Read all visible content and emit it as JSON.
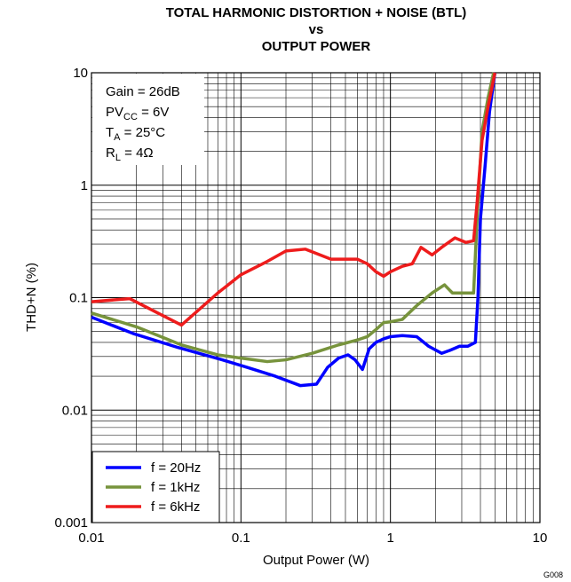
{
  "chart_data": {
    "type": "line",
    "title": [
      "TOTAL HARMONIC DISTORTION + NOISE (BTL)",
      "vs",
      "OUTPUT POWER"
    ],
    "x_label": "Output Power (W)",
    "y_label": "THD+N (%)",
    "footnote": "G008",
    "annotations": [
      {
        "text": "Gain = 26dB"
      },
      {
        "text": "PV",
        "sub": "CC",
        "tail": " = 6V"
      },
      {
        "text": "T",
        "sub": "A",
        "tail": " = 25°C"
      },
      {
        "text": "R",
        "sub": "L",
        "tail": " = 4Ω"
      }
    ],
    "xlog": true,
    "ylog": true,
    "grid": true,
    "minor_grid": true,
    "legend": "lower left",
    "xlim": [
      0.01,
      10
    ],
    "ylim": [
      0.001,
      10
    ],
    "xticks": [
      0.01,
      0.1,
      1,
      10
    ],
    "yticks": [
      0.001,
      0.01,
      0.1,
      1,
      10
    ],
    "series": [
      {
        "name": "f = 20Hz",
        "color": "#0000ff",
        "x": [
          0.01,
          0.019,
          0.038,
          0.075,
          0.11,
          0.17,
          0.25,
          0.32,
          0.38,
          0.45,
          0.52,
          0.58,
          0.65,
          0.72,
          0.8,
          0.9,
          1.0,
          1.2,
          1.5,
          1.8,
          2.2,
          2.5,
          2.9,
          3.3,
          3.7,
          3.85,
          4.0,
          4.3,
          4.6,
          5.0
        ],
        "values": [
          0.067,
          0.048,
          0.036,
          0.028,
          0.024,
          0.02,
          0.0165,
          0.017,
          0.024,
          0.029,
          0.031,
          0.028,
          0.023,
          0.035,
          0.04,
          0.043,
          0.045,
          0.046,
          0.045,
          0.037,
          0.032,
          0.034,
          0.037,
          0.037,
          0.04,
          0.1,
          0.5,
          1.5,
          4.5,
          10
        ]
      },
      {
        "name": "f = 1kHz",
        "color": "#77933c",
        "x": [
          0.01,
          0.02,
          0.04,
          0.07,
          0.1,
          0.15,
          0.2,
          0.3,
          0.45,
          0.6,
          0.7,
          0.8,
          0.9,
          1.0,
          1.2,
          1.5,
          1.9,
          2.3,
          2.6,
          2.8,
          3.2,
          3.6,
          3.8,
          4.1,
          4.5,
          4.9
        ],
        "values": [
          0.073,
          0.055,
          0.038,
          0.031,
          0.029,
          0.027,
          0.028,
          0.032,
          0.038,
          0.042,
          0.045,
          0.052,
          0.06,
          0.061,
          0.064,
          0.085,
          0.11,
          0.13,
          0.11,
          0.11,
          0.11,
          0.11,
          0.5,
          3,
          6,
          10
        ]
      },
      {
        "name": "f = 6kHz",
        "color": "#ee1c1c",
        "x": [
          0.01,
          0.018,
          0.04,
          0.07,
          0.1,
          0.15,
          0.2,
          0.27,
          0.4,
          0.6,
          0.7,
          0.8,
          0.9,
          1.0,
          1.2,
          1.4,
          1.6,
          1.9,
          2.2,
          2.7,
          3.2,
          3.6,
          3.8,
          4.1,
          4.5,
          5.0
        ],
        "values": [
          0.092,
          0.098,
          0.057,
          0.11,
          0.16,
          0.21,
          0.26,
          0.27,
          0.22,
          0.22,
          0.2,
          0.17,
          0.155,
          0.17,
          0.19,
          0.2,
          0.28,
          0.24,
          0.28,
          0.34,
          0.31,
          0.32,
          0.7,
          2.5,
          5,
          10
        ]
      }
    ]
  }
}
